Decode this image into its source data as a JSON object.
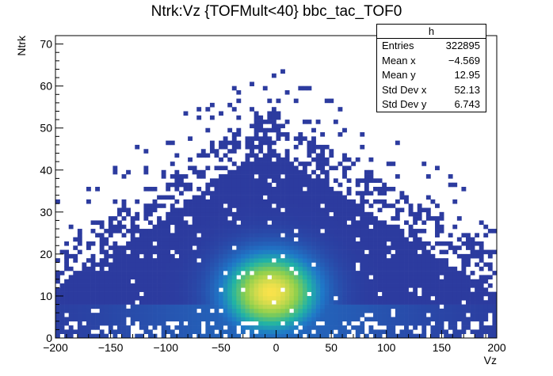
{
  "title": "Ntrk:Vz {TOFMult<40} bbc_tac_TOF0",
  "stats": {
    "name": "h",
    "rows": [
      {
        "label": "Entries",
        "value": "322895"
      },
      {
        "label": "Mean x",
        "value": "−4.569"
      },
      {
        "label": "Mean y",
        "value": "12.95"
      },
      {
        "label": "Std Dev x",
        "value": "52.13"
      },
      {
        "label": "Std Dev y",
        "value": "6.743"
      }
    ]
  },
  "chart_data": {
    "type": "heatmap",
    "title": "Ntrk:Vz {TOFMult<40} bbc_tac_TOF0",
    "xlabel": "Vz",
    "ylabel": "Ntrk",
    "xlim": [
      -200,
      200
    ],
    "ylim": [
      0,
      72
    ],
    "xticks": [
      -200,
      -150,
      -100,
      -50,
      0,
      50,
      100,
      150,
      200
    ],
    "xtick_labels": [
      "−200",
      "−150",
      "−100",
      "−50",
      "0",
      "50",
      "100",
      "150",
      "200"
    ],
    "yticks": [
      0,
      10,
      20,
      30,
      40,
      50,
      60,
      70
    ],
    "ytick_labels": [
      "0",
      "10",
      "20",
      "30",
      "40",
      "50",
      "60",
      "70"
    ],
    "distribution": {
      "peak_vz": -4.569,
      "peak_ntrk": 12.95,
      "std_vz": 52.13,
      "std_ntrk": 6.743
    },
    "colors": {
      "low": "#2c3b9f",
      "mid_low": "#1f78c8",
      "mid": "#21b3a5",
      "mid_high": "#8ccf4d",
      "high": "#f9e24b"
    }
  }
}
